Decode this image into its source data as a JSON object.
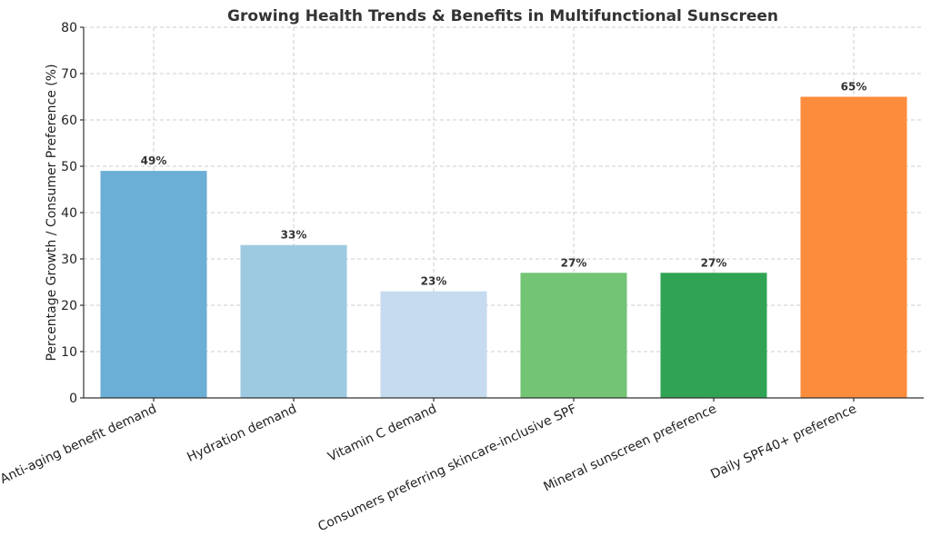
{
  "chart_data": {
    "type": "bar",
    "title": "Growing Health Trends & Benefits in Multifunctional Sunscreen",
    "xlabel": "",
    "ylabel": "Percentage Growth / Consumer Preference (%)",
    "ylim": [
      0,
      80
    ],
    "yticks": [
      0,
      10,
      20,
      30,
      40,
      50,
      60,
      70,
      80
    ],
    "grid": true,
    "categories": [
      "Anti-aging benefit demand",
      "Hydration demand",
      "Vitamin C demand",
      "Consumers preferring skincare-inclusive SPF",
      "Mineral sunscreen preference",
      "Daily SPF40+ preference"
    ],
    "values": [
      49,
      33,
      23,
      27,
      27,
      65
    ],
    "data_labels": [
      "49%",
      "33%",
      "23%",
      "27%",
      "27%",
      "65%"
    ],
    "colors": [
      "#6baed6",
      "#9ecae1",
      "#c6dbef",
      "#74c476",
      "#31a354",
      "#fd8d3c"
    ]
  }
}
